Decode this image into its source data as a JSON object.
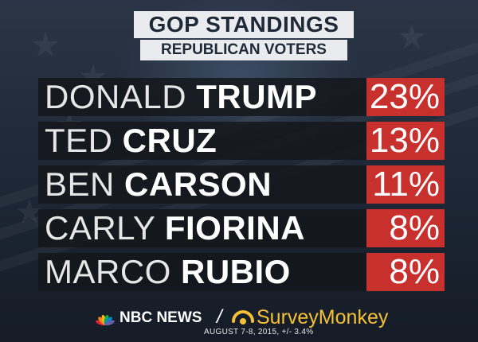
{
  "chart_data": {
    "type": "table",
    "title": "GOP STANDINGS",
    "subtitle": "REPUBLICAN VOTERS",
    "candidates": [
      {
        "first": "DONALD",
        "last": "TRUMP",
        "value": 23,
        "label": "23%"
      },
      {
        "first": "TED",
        "last": "CRUZ",
        "value": 13,
        "label": "13%"
      },
      {
        "first": "BEN",
        "last": "CARSON",
        "value": 11,
        "label": "11%"
      },
      {
        "first": "CARLY",
        "last": "FIORINA",
        "value": 8,
        "label": "8%"
      },
      {
        "first": "MARCO",
        "last": "RUBIO",
        "value": 8,
        "label": "8%"
      }
    ]
  },
  "footer": {
    "nbc_label": "NBC NEWS",
    "slash": "/",
    "surveymonkey_label": "SurveyMonkey",
    "source_note": "AUGUST 7-8, 2015, +/- 3.4%"
  },
  "colors": {
    "accent": "#c8302e",
    "nbc_peacock": [
      "#e3262c",
      "#f58220",
      "#fcb711",
      "#0db14b",
      "#0089d0",
      "#6460aa"
    ],
    "surveymonkey": "#f5c035"
  },
  "icons": {
    "nbc": "nbc-peacock-icon",
    "surveymonkey": "surveymonkey-logo-icon"
  }
}
